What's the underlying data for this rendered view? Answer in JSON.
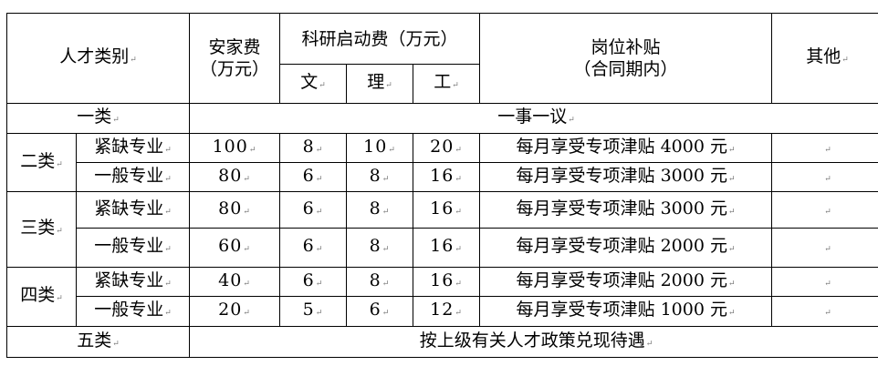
{
  "header": {
    "category": "人才类别",
    "settle_fee": [
      "安家费",
      "（万元）"
    ],
    "research_fee": "科研启动费（万元）",
    "research_sub": [
      "文",
      "理",
      "工"
    ],
    "allowance": [
      "岗位补贴",
      "（合同期内）"
    ],
    "other": "其他"
  },
  "row1": {
    "category": "一类",
    "value": "一事一议"
  },
  "groups": [
    {
      "category": "二类",
      "rows": [
        {
          "sub": "紧缺专业",
          "settle": "100",
          "wen": "8",
          "li": "10",
          "gong": "20",
          "allowance": "每月享受专项津贴 4000 元"
        },
        {
          "sub": "一般专业",
          "settle": "80",
          "wen": "6",
          "li": "8",
          "gong": "16",
          "allowance": "每月享受专项津贴 3000 元"
        }
      ]
    },
    {
      "category": "三类",
      "rows": [
        {
          "sub": "紧缺专业",
          "settle": "80",
          "wen": "6",
          "li": "8",
          "gong": "16",
          "allowance": "每月享受专项津贴 3000 元"
        },
        {
          "sub": "一般专业",
          "settle": "60",
          "wen": "6",
          "li": "8",
          "gong": "16",
          "allowance": "每月享受专项津贴 2000 元"
        }
      ]
    },
    {
      "category": "四类",
      "rows": [
        {
          "sub": "紧缺专业",
          "settle": "40",
          "wen": "6",
          "li": "8",
          "gong": "16",
          "allowance": "每月享受专项津贴 2000 元"
        },
        {
          "sub": "一般专业",
          "settle": "20",
          "wen": "5",
          "li": "6",
          "gong": "12",
          "allowance": "每月享受专项津贴 1000 元"
        }
      ]
    }
  ],
  "row5": {
    "category": "五类",
    "value": "按上级有关人才政策兑现待遇"
  }
}
